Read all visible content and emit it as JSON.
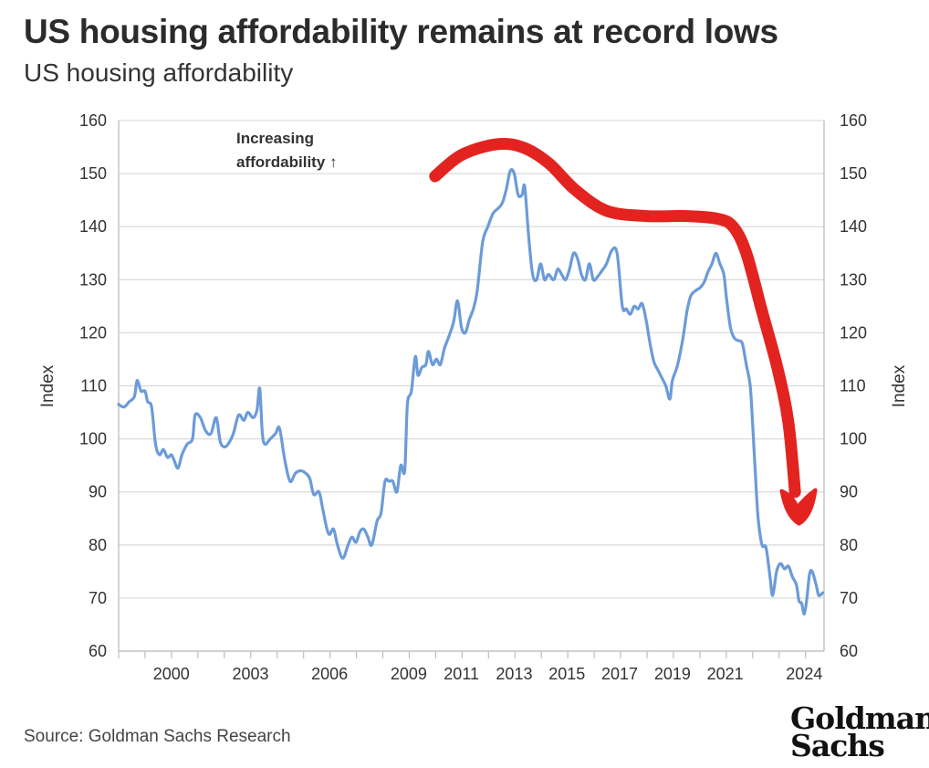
{
  "title": "US housing affordability remains at record lows",
  "subtitle": "US housing affordability",
  "source": "Source: Goldman Sachs Research",
  "logo": {
    "line1": "Goldman",
    "line2": "Sachs"
  },
  "colors": {
    "line": "#6b9bd8",
    "overlay_arrow": "#e3231f",
    "grid": "#dcdcdc"
  },
  "chart_data": {
    "type": "line",
    "title": "US housing affordability",
    "ylabel_left": "Index",
    "ylabel_right": "Index",
    "ylim": [
      60,
      160
    ],
    "yticks": [
      60,
      70,
      80,
      90,
      100,
      110,
      120,
      130,
      140,
      150,
      160
    ],
    "xlim": [
      1998.0,
      2024.75
    ],
    "xtick_labels": [
      {
        "label": "2000",
        "x": 2000.0
      },
      {
        "label": "2003",
        "x": 2003.0
      },
      {
        "label": "2006",
        "x": 2006.0
      },
      {
        "label": "2009",
        "x": 2009.0
      },
      {
        "label": "2011",
        "x": 2011.0
      },
      {
        "label": "2013",
        "x": 2013.0
      },
      {
        "label": "2015",
        "x": 2015.0
      },
      {
        "label": "2017",
        "x": 2017.0
      },
      {
        "label": "2019",
        "x": 2019.0
      },
      {
        "label": "2021",
        "x": 2021.0
      },
      {
        "label": "2024",
        "x": 2024.0
      }
    ],
    "annotation": {
      "text_line1": "Increasing",
      "text_line2": "affordability ↑"
    },
    "series": [
      {
        "values": [
          [
            1998.0,
            106.5
          ],
          [
            1998.2,
            106
          ],
          [
            1998.4,
            107
          ],
          [
            1998.6,
            108
          ],
          [
            1998.7,
            111
          ],
          [
            1998.85,
            109
          ],
          [
            1999.0,
            109
          ],
          [
            1999.1,
            107
          ],
          [
            1999.25,
            106
          ],
          [
            1999.4,
            99
          ],
          [
            1999.55,
            97
          ],
          [
            1999.7,
            98
          ],
          [
            1999.85,
            96.5
          ],
          [
            2000.0,
            97
          ],
          [
            2000.1,
            96
          ],
          [
            2000.25,
            94.5
          ],
          [
            2000.4,
            97
          ],
          [
            2000.6,
            99
          ],
          [
            2000.8,
            100
          ],
          [
            2000.9,
            104.5
          ],
          [
            2001.1,
            104
          ],
          [
            2001.3,
            101.5
          ],
          [
            2001.5,
            101
          ],
          [
            2001.7,
            104
          ],
          [
            2001.85,
            99.5
          ],
          [
            2002.0,
            98.5
          ],
          [
            2002.15,
            99
          ],
          [
            2002.35,
            101
          ],
          [
            2002.55,
            104.5
          ],
          [
            2002.75,
            103.5
          ],
          [
            2002.9,
            105
          ],
          [
            2003.1,
            104
          ],
          [
            2003.25,
            105.5
          ],
          [
            2003.35,
            109.5
          ],
          [
            2003.45,
            101
          ],
          [
            2003.55,
            99
          ],
          [
            2003.75,
            100
          ],
          [
            2003.95,
            101
          ],
          [
            2004.1,
            102
          ],
          [
            2004.3,
            96
          ],
          [
            2004.5,
            92
          ],
          [
            2004.7,
            93.5
          ],
          [
            2004.9,
            94
          ],
          [
            2005.1,
            93.5
          ],
          [
            2005.25,
            92.5
          ],
          [
            2005.4,
            89.5
          ],
          [
            2005.6,
            90
          ],
          [
            2005.75,
            86.5
          ],
          [
            2005.9,
            83
          ],
          [
            2006.0,
            82
          ],
          [
            2006.15,
            83
          ],
          [
            2006.3,
            80
          ],
          [
            2006.5,
            77.5
          ],
          [
            2006.7,
            80
          ],
          [
            2006.85,
            81.5
          ],
          [
            2007.0,
            80.5
          ],
          [
            2007.15,
            82.5
          ],
          [
            2007.3,
            83
          ],
          [
            2007.45,
            81.5
          ],
          [
            2007.6,
            80
          ],
          [
            2007.8,
            84.5
          ],
          [
            2007.95,
            86
          ],
          [
            2008.1,
            92
          ],
          [
            2008.25,
            92
          ],
          [
            2008.4,
            92
          ],
          [
            2008.55,
            90
          ],
          [
            2008.7,
            95
          ],
          [
            2008.85,
            94
          ],
          [
            2008.95,
            106.5
          ],
          [
            2009.1,
            109
          ],
          [
            2009.25,
            115.5
          ],
          [
            2009.35,
            112
          ],
          [
            2009.5,
            113.5
          ],
          [
            2009.65,
            114
          ],
          [
            2009.75,
            116.5
          ],
          [
            2009.9,
            114
          ],
          [
            2010.05,
            115
          ],
          [
            2010.2,
            114
          ],
          [
            2010.35,
            117
          ],
          [
            2010.5,
            119
          ],
          [
            2010.7,
            122
          ],
          [
            2010.85,
            126
          ],
          [
            2011.0,
            121
          ],
          [
            2011.15,
            120
          ],
          [
            2011.3,
            122.5
          ],
          [
            2011.45,
            124.5
          ],
          [
            2011.6,
            128
          ],
          [
            2011.8,
            137
          ],
          [
            2012.0,
            140
          ],
          [
            2012.2,
            142.5
          ],
          [
            2012.4,
            143.5
          ],
          [
            2012.55,
            144.5
          ],
          [
            2012.7,
            147
          ],
          [
            2012.85,
            150.5
          ],
          [
            2013.0,
            150
          ],
          [
            2013.15,
            146
          ],
          [
            2013.3,
            146
          ],
          [
            2013.4,
            147.5
          ],
          [
            2013.55,
            138
          ],
          [
            2013.7,
            131
          ],
          [
            2013.85,
            130
          ],
          [
            2014.0,
            133
          ],
          [
            2014.15,
            130
          ],
          [
            2014.3,
            131
          ],
          [
            2014.5,
            130
          ],
          [
            2014.65,
            132
          ],
          [
            2014.8,
            131
          ],
          [
            2014.95,
            130
          ],
          [
            2015.1,
            132
          ],
          [
            2015.25,
            135
          ],
          [
            2015.4,
            134
          ],
          [
            2015.55,
            131
          ],
          [
            2015.7,
            130
          ],
          [
            2015.85,
            133
          ],
          [
            2016.0,
            130
          ],
          [
            2016.15,
            130.5
          ],
          [
            2016.3,
            131.5
          ],
          [
            2016.5,
            133
          ],
          [
            2016.7,
            135.5
          ],
          [
            2016.9,
            135
          ],
          [
            2017.1,
            125
          ],
          [
            2017.25,
            124.5
          ],
          [
            2017.4,
            123.5
          ],
          [
            2017.55,
            125
          ],
          [
            2017.7,
            124.5
          ],
          [
            2017.85,
            125.5
          ],
          [
            2018.0,
            122.5
          ],
          [
            2018.15,
            118
          ],
          [
            2018.3,
            114.5
          ],
          [
            2018.45,
            113
          ],
          [
            2018.6,
            111.5
          ],
          [
            2018.75,
            110
          ],
          [
            2018.9,
            107.5
          ],
          [
            2019.0,
            111
          ],
          [
            2019.2,
            114
          ],
          [
            2019.4,
            119
          ],
          [
            2019.55,
            124
          ],
          [
            2019.7,
            127
          ],
          [
            2019.9,
            128
          ],
          [
            2020.05,
            128.5
          ],
          [
            2020.2,
            129.5
          ],
          [
            2020.35,
            131.5
          ],
          [
            2020.5,
            133
          ],
          [
            2020.65,
            135
          ],
          [
            2020.8,
            133
          ],
          [
            2020.95,
            131
          ],
          [
            2021.05,
            126.5
          ],
          [
            2021.2,
            121
          ],
          [
            2021.35,
            119
          ],
          [
            2021.5,
            118.5
          ],
          [
            2021.65,
            118
          ],
          [
            2021.8,
            114
          ],
          [
            2021.95,
            110
          ],
          [
            2022.05,
            102
          ],
          [
            2022.15,
            93
          ],
          [
            2022.25,
            85
          ],
          [
            2022.4,
            80
          ],
          [
            2022.55,
            79.5
          ],
          [
            2022.7,
            74
          ],
          [
            2022.8,
            70.5
          ],
          [
            2022.95,
            75
          ],
          [
            2023.1,
            76.5
          ],
          [
            2023.25,
            75.5
          ],
          [
            2023.4,
            76
          ],
          [
            2023.55,
            74
          ],
          [
            2023.7,
            72.5
          ],
          [
            2023.8,
            69.5
          ],
          [
            2023.9,
            69
          ],
          [
            2024.0,
            67
          ],
          [
            2024.1,
            70
          ],
          [
            2024.2,
            74.5
          ],
          [
            2024.3,
            75
          ],
          [
            2024.45,
            72.5
          ],
          [
            2024.55,
            70.5
          ],
          [
            2024.7,
            71
          ]
        ]
      }
    ],
    "overlay_arrow": {
      "color": "#e3231f",
      "path_points": [
        [
          2010.0,
          149.5
        ],
        [
          2011.0,
          153.5
        ],
        [
          2012.3,
          155.5
        ],
        [
          2013.3,
          155
        ],
        [
          2014.3,
          152
        ],
        [
          2015.3,
          147
        ],
        [
          2016.5,
          143
        ],
        [
          2018.0,
          142
        ],
        [
          2019.5,
          142
        ],
        [
          2020.7,
          141.5
        ],
        [
          2021.3,
          140
        ],
        [
          2021.8,
          135
        ],
        [
          2022.4,
          124
        ],
        [
          2023.0,
          113
        ],
        [
          2023.4,
          103
        ],
        [
          2023.65,
          90
        ]
      ],
      "arrowhead_tip": [
        2023.8,
        84
      ]
    }
  }
}
